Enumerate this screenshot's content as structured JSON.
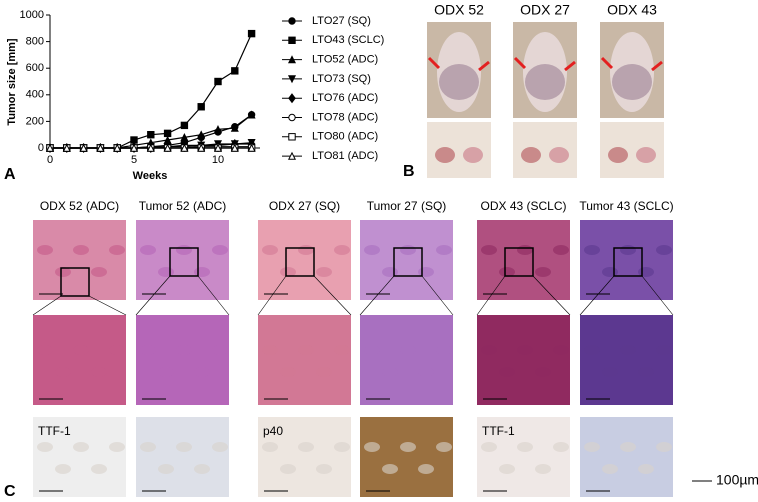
{
  "chart_data": {
    "type": "line",
    "x_label": "Weeks",
    "y_label": "Tumor size [mm]",
    "x": [
      0,
      1,
      2,
      3,
      4,
      5,
      6,
      7,
      8,
      9,
      10,
      11,
      12
    ],
    "xlim": [
      0,
      12.5
    ],
    "xticks": [
      0,
      5,
      10
    ],
    "ylim": [
      0,
      1000
    ],
    "yticks": [
      0,
      200,
      400,
      600,
      800,
      1000
    ],
    "series": [
      {
        "name": "LTO27 (SQ)",
        "color": "#000000",
        "marker": "circle",
        "values": [
          0,
          0,
          0,
          0,
          0,
          0,
          10,
          20,
          40,
          80,
          120,
          160,
          250
        ]
      },
      {
        "name": "LTO43 (SCLC)",
        "color": "#000000",
        "marker": "square",
        "values": [
          0,
          0,
          0,
          0,
          0,
          60,
          100,
          110,
          170,
          310,
          500,
          580,
          860
        ]
      },
      {
        "name": "LTO52 (ADC)",
        "color": "#000000",
        "marker": "triangle-up",
        "values": [
          0,
          0,
          0,
          0,
          0,
          20,
          40,
          60,
          80,
          100,
          140,
          150,
          250
        ]
      },
      {
        "name": "LTO73 (SQ)",
        "color": "#000000",
        "marker": "triangle-down",
        "values": [
          0,
          0,
          0,
          0,
          0,
          0,
          10,
          10,
          20,
          20,
          30,
          30,
          40
        ]
      },
      {
        "name": "LTO76 (ADC)",
        "color": "#000000",
        "marker": "diamond",
        "values": [
          0,
          0,
          0,
          0,
          0,
          0,
          0,
          10,
          10,
          20,
          20,
          30,
          30
        ]
      },
      {
        "name": "LTO78 (ADC)",
        "color": "#000000",
        "marker": "circle-open",
        "values": [
          0,
          0,
          0,
          0,
          0,
          0,
          0,
          0,
          0,
          10,
          10,
          10,
          10
        ]
      },
      {
        "name": "LTO80 (ADC)",
        "color": "#000000",
        "marker": "square-open",
        "values": [
          0,
          0,
          0,
          0,
          0,
          0,
          0,
          0,
          0,
          0,
          0,
          0,
          0
        ]
      },
      {
        "name": "LTO81 (ADC)",
        "color": "#000000",
        "marker": "triangle-open",
        "values": [
          0,
          0,
          0,
          0,
          0,
          0,
          0,
          0,
          0,
          0,
          0,
          0,
          0
        ]
      }
    ]
  },
  "panel_labels": [
    "A",
    "B",
    "C"
  ],
  "panel_b": {
    "titles": [
      "ODX 52",
      "ODX 27",
      "ODX 43"
    ]
  },
  "panel_c": {
    "titles": [
      "ODX 52 (ADC)",
      "Tumor 52 (ADC)",
      "ODX 27 (SQ)",
      "Tumor 27 (SQ)",
      "ODX 43 (SCLC)",
      "Tumor 43 (SCLC)"
    ],
    "stains": [
      "TTF-1",
      "p40",
      "TTF-1"
    ],
    "scale_bar": "100µm"
  }
}
